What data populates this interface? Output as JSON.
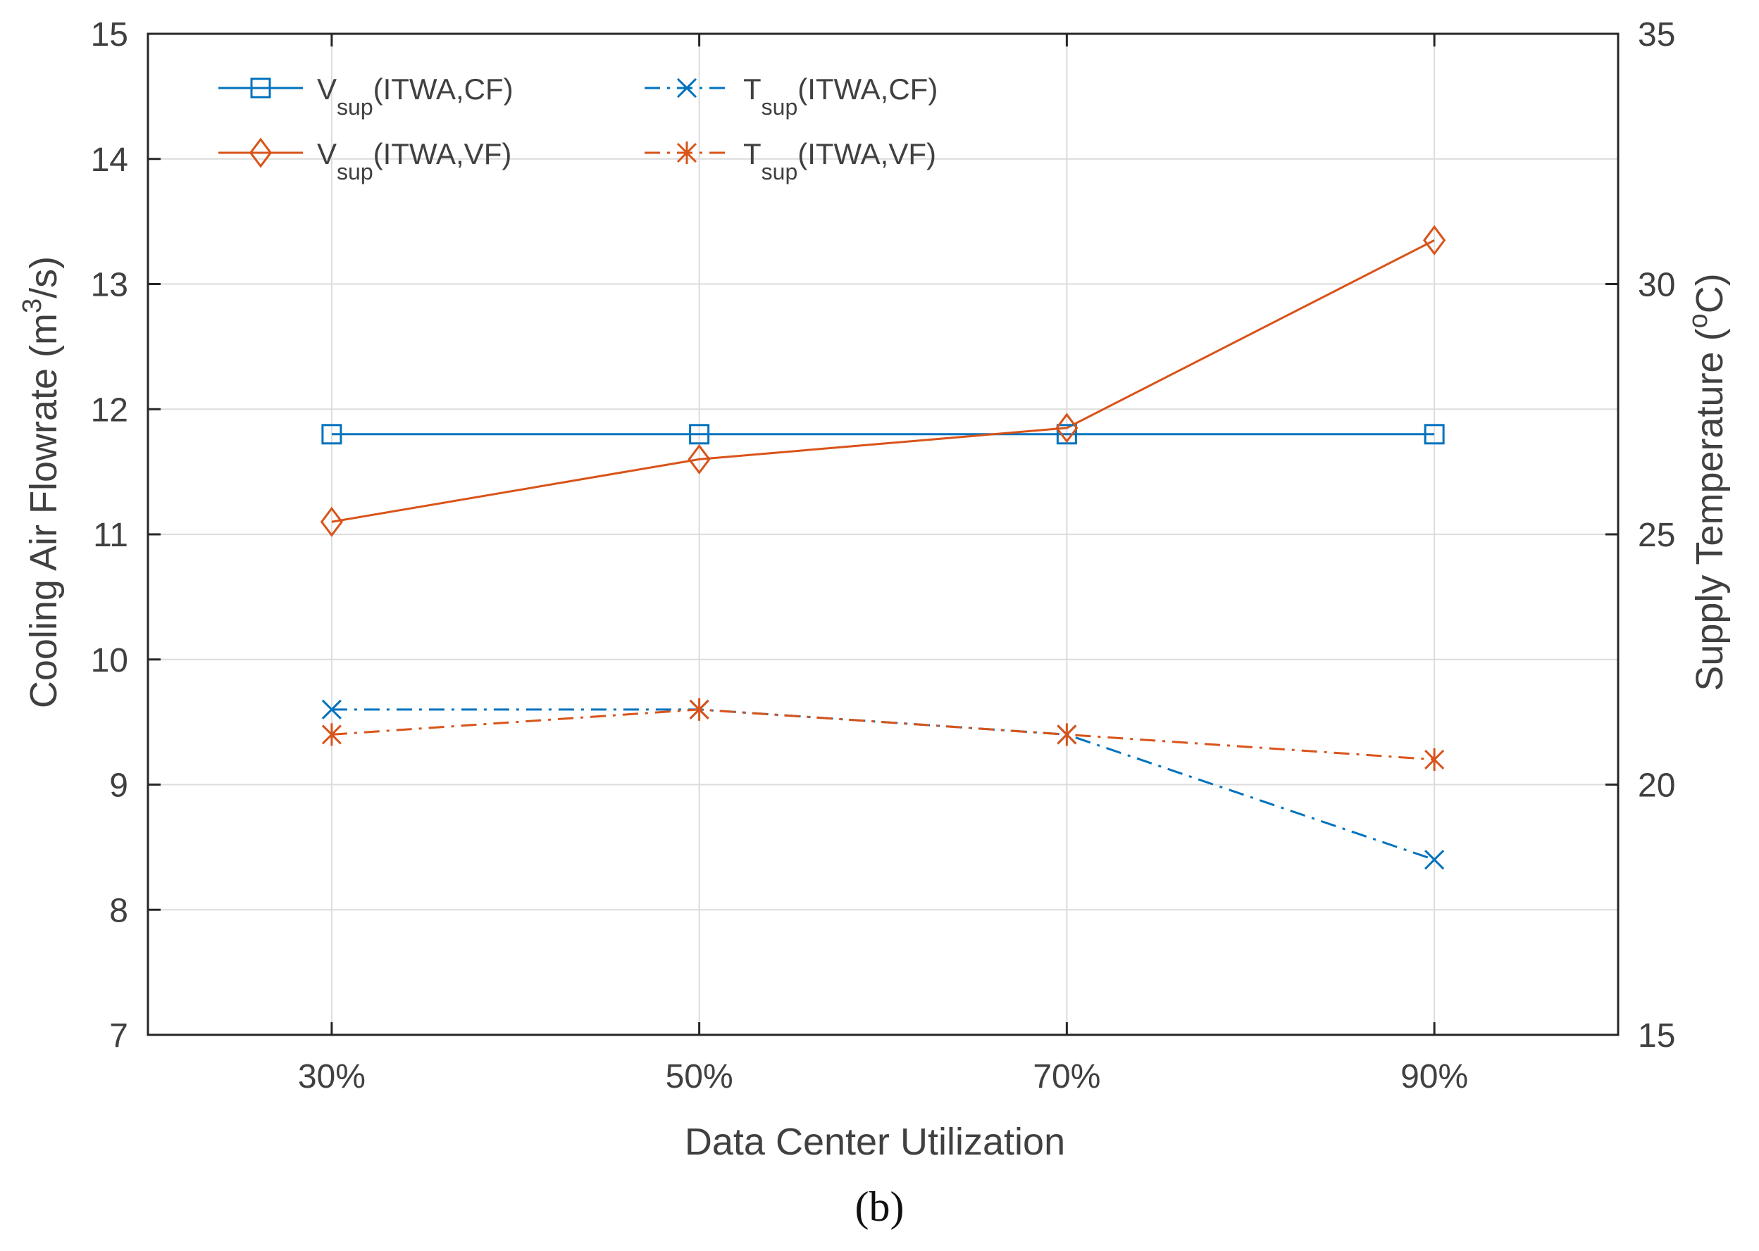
{
  "chart_data": {
    "type": "line",
    "dual_axis": true,
    "categories": [
      "30%",
      "50%",
      "70%",
      "90%"
    ],
    "xlabel": "Data Center Utilization",
    "ylabel_left": {
      "main": "Cooling Air Flowrate (m",
      "sup": "3",
      "end": "/s)"
    },
    "ylabel_right": {
      "main": "Supply Temperature (",
      "sup": "o",
      "end": "C)"
    },
    "ylim_left": [
      7,
      15
    ],
    "yticks_left": [
      7,
      8,
      9,
      10,
      11,
      12,
      13,
      14,
      15
    ],
    "ylim_right": [
      15,
      35
    ],
    "yticks_right": [
      15,
      20,
      25,
      30,
      35
    ],
    "grid": true,
    "legend_position": "top-left",
    "series": [
      {
        "name": "Vsup(ITWA,CF)",
        "symbol": "V",
        "sub": "sup",
        "suffix": "(ITWA,CF)",
        "axis": "left",
        "values": [
          11.8,
          11.8,
          11.8,
          11.8
        ],
        "color": "#0072BD",
        "marker": "square",
        "line": "solid"
      },
      {
        "name": "Vsup(ITWA,VF)",
        "symbol": "V",
        "sub": "sup",
        "suffix": "(ITWA,VF)",
        "axis": "left",
        "values": [
          11.1,
          11.6,
          11.85,
          13.35
        ],
        "color": "#D95319",
        "marker": "diamond",
        "line": "solid"
      },
      {
        "name": "Tsup(ITWA,CF)",
        "symbol": "T",
        "sub": "sup",
        "suffix": "(ITWA,CF)",
        "axis": "right",
        "values": [
          21.5,
          21.5,
          21.0,
          18.5
        ],
        "color": "#0072BD",
        "marker": "x",
        "line": "dashdot"
      },
      {
        "name": "Tsup(ITWA,VF)",
        "symbol": "T",
        "sub": "sup",
        "suffix": "(ITWA,VF)",
        "axis": "right",
        "values": [
          21.0,
          21.5,
          21.0,
          20.5
        ],
        "color": "#D95319",
        "marker": "asterisk",
        "line": "dashdot"
      }
    ]
  },
  "panel_label": "(b)"
}
